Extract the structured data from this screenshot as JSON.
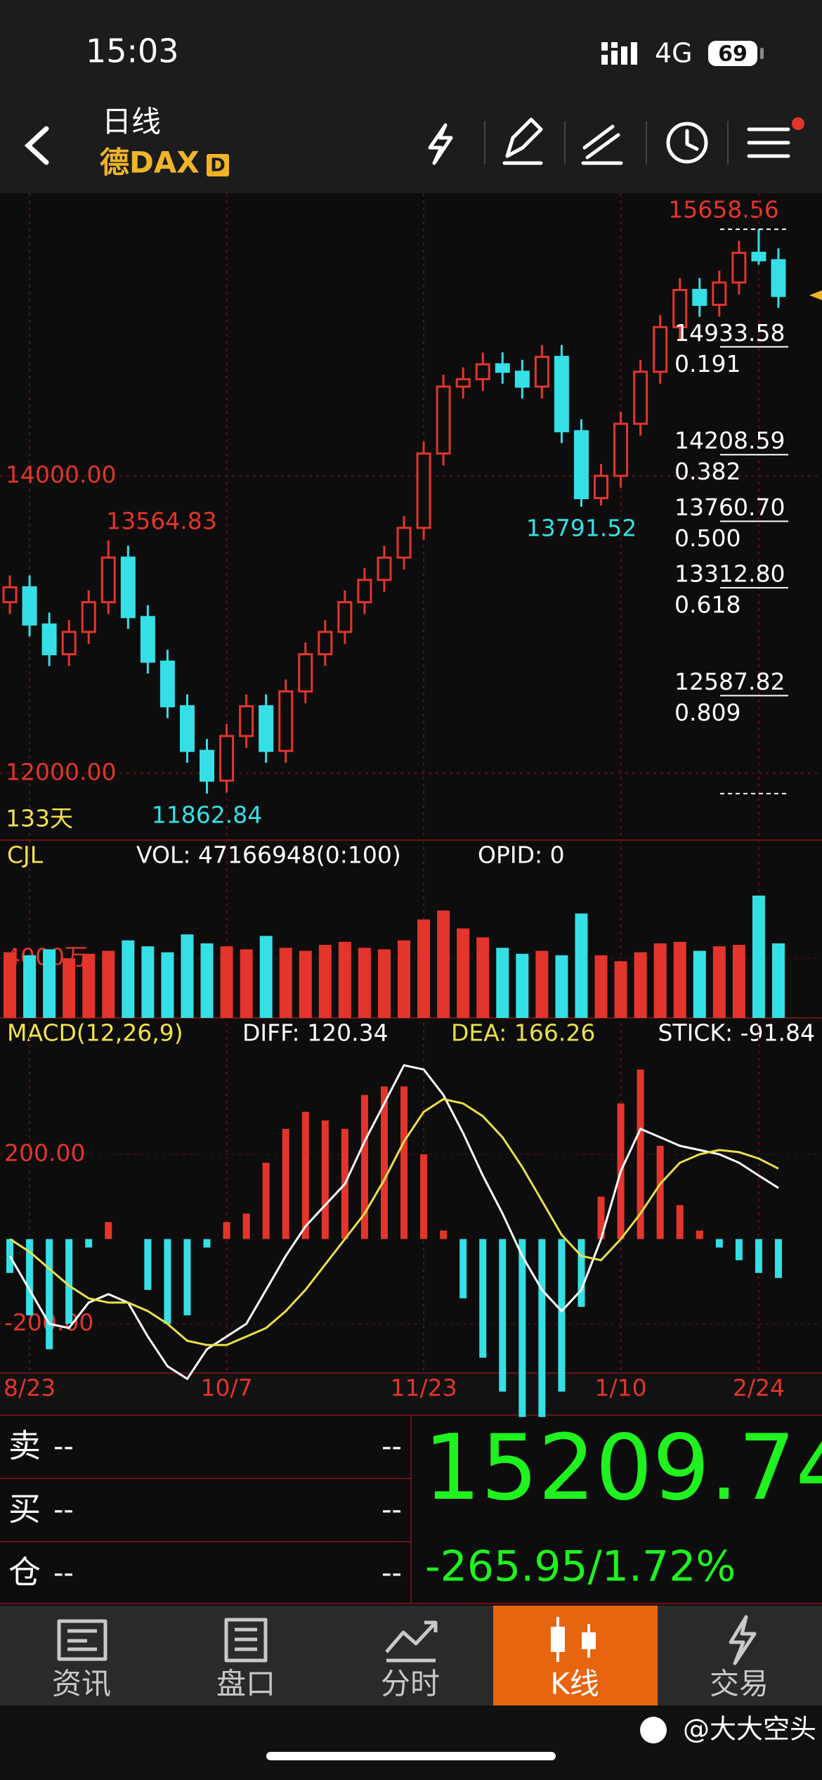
{
  "status_bar": {
    "time": "15:03",
    "network": "4G",
    "battery": "69"
  },
  "header": {
    "period": "日线",
    "symbol": "德DAX",
    "badge": "D"
  },
  "chart_data": [
    {
      "type": "candlestick",
      "period_label": "133天",
      "categories": [
        null,
        "8/23",
        null,
        null,
        null,
        null,
        null,
        null,
        null,
        null,
        null,
        "10/7",
        null,
        null,
        null,
        null,
        null,
        null,
        null,
        null,
        null,
        "11/23",
        null,
        null,
        null,
        null,
        null,
        null,
        null,
        null,
        null,
        "1/10",
        null,
        null,
        null,
        null,
        null,
        null,
        "2/24",
        null
      ],
      "open": [
        13150,
        13250,
        13000,
        12800,
        12950,
        13150,
        13450,
        13050,
        12750,
        12450,
        12150,
        11950,
        12250,
        12450,
        12150,
        12550,
        12800,
        12950,
        13150,
        13300,
        13450,
        13650,
        14150,
        14600,
        14650,
        14750,
        14700,
        14600,
        14800,
        14300,
        13850,
        14000,
        14350,
        14700,
        15000,
        15250,
        15150,
        15300,
        15500,
        15450
      ],
      "high": [
        13330,
        13330,
        13080,
        13030,
        13230,
        13564.83,
        13530,
        13130,
        12830,
        12530,
        12230,
        12330,
        12530,
        12530,
        12630,
        12880,
        13030,
        13230,
        13380,
        13530,
        13730,
        14230,
        14680,
        14730,
        14830,
        14830,
        14780,
        14880,
        14880,
        14380,
        14080,
        14430,
        14780,
        15080,
        15330,
        15330,
        15380,
        15580,
        15658.56,
        15530
      ],
      "low": [
        13070,
        12920,
        12720,
        12720,
        12870,
        13070,
        12970,
        12670,
        12370,
        12070,
        11862.84,
        11870,
        12170,
        12070,
        12070,
        12470,
        12720,
        12870,
        13070,
        13220,
        13370,
        13570,
        14070,
        14520,
        14570,
        14620,
        14520,
        14520,
        14220,
        13791.52,
        13800,
        13920,
        14270,
        14620,
        14920,
        15070,
        15070,
        15220,
        15420,
        15130
      ],
      "close": [
        13250,
        13000,
        12800,
        12950,
        13150,
        13450,
        13050,
        12750,
        12450,
        12150,
        11950,
        12250,
        12450,
        12150,
        12550,
        12800,
        12950,
        13150,
        13300,
        13450,
        13650,
        14150,
        14600,
        14650,
        14750,
        14700,
        14600,
        14800,
        14300,
        13850,
        14000,
        14350,
        14700,
        15000,
        15250,
        15150,
        15300,
        15500,
        15450,
        15210
      ],
      "up_color": "#e3352b",
      "down_color": "#35dfe6",
      "ylim": [
        11550,
        15900
      ],
      "yticks": [
        {
          "value": 14000,
          "label": "14000.00"
        },
        {
          "value": 12000,
          "label": "12000.00"
        }
      ],
      "fib_levels": [
        {
          "price": 14933.58,
          "ratio": 0.191
        },
        {
          "price": 14208.59,
          "ratio": 0.382
        },
        {
          "price": {
            "value": 13760.7,
            "label": "13760.70"
          },
          "ratio": {
            "value": 0.5,
            "label": "0.500"
          }
        },
        {
          "price": {
            "value": 13312.8,
            "label": "13312.80"
          },
          "ratio": 0.618
        },
        {
          "price": 12587.82,
          "ratio": 0.809
        }
      ]
    },
    {
      "type": "bar",
      "title": "CJL",
      "subtitle": "VOL: 47166948(0:100)",
      "annotation": "OPID: 0",
      "values": [
        4400,
        4200,
        4600,
        4000,
        4300,
        4500,
        5200,
        4800,
        4400,
        5600,
        5000,
        4800,
        4600,
        5500,
        4700,
        4500,
        4900,
        5100,
        4700,
        4600,
        5200,
        6600,
        7200,
        6000,
        5400,
        4700,
        4300,
        4500,
        4200,
        7000,
        4200,
        3800,
        4400,
        5000,
        5100,
        4500,
        4800,
        4900,
        8200,
        5000
      ],
      "ylim": [
        0,
        9800
      ],
      "yticks": [
        {
          "value": 4000,
          "label": "4000万"
        }
      ]
    },
    {
      "type": "macd",
      "title": "MACD(12,26,9)",
      "series": [
        {
          "name": "DIFF: 120.34",
          "color": "#ffffff",
          "values": [
            -40,
            -120,
            -200,
            -210,
            -150,
            -130,
            -150,
            -230,
            -300,
            -330,
            -260,
            -230,
            -200,
            -120,
            -40,
            30,
            80,
            130,
            230,
            320,
            410,
            400,
            340,
            250,
            150,
            60,
            -40,
            -120,
            -170,
            -120,
            0,
            160,
            260,
            240,
            220,
            210,
            200,
            180,
            150,
            120.34
          ]
        },
        {
          "name": "DEA: 166.26",
          "color": "#e8e04a",
          "values": [
            0,
            -30,
            -70,
            -110,
            -140,
            -150,
            -150,
            -170,
            -200,
            -240,
            -250,
            -250,
            -230,
            -210,
            -170,
            -120,
            -60,
            0,
            60,
            140,
            230,
            300,
            330,
            320,
            290,
            240,
            170,
            90,
            10,
            -40,
            -50,
            0,
            60,
            130,
            180,
            200,
            210,
            205,
            190,
            166.26
          ]
        }
      ],
      "stick": {
        "name": "STICK: -91.84",
        "color": "#ffffff",
        "values": [
          -80,
          -180,
          -260,
          -200,
          -20,
          40,
          0,
          -120,
          -200,
          -180,
          -20,
          40,
          60,
          180,
          260,
          300,
          280,
          260,
          340,
          360,
          360,
          200,
          20,
          -140,
          -280,
          -360,
          -420,
          -420,
          -360,
          -160,
          100,
          320,
          400,
          220,
          80,
          20,
          -20,
          -50,
          -80,
          -91.84
        ]
      },
      "ylim": [
        -316,
        452
      ],
      "yticks": [
        {
          "value": 200,
          "label": "200.00"
        },
        {
          "value": -200,
          "label": "-200.00"
        }
      ]
    }
  ],
  "quote": {
    "rows": [
      {
        "label": "卖",
        "left": "--",
        "right": "--"
      },
      {
        "label": "买",
        "left": "--",
        "right": "--"
      },
      {
        "label": "仓",
        "left": "--",
        "right": "--"
      }
    ],
    "price": 15209.74,
    "change": "-265.95/1.72%"
  },
  "tabs": [
    "资讯",
    "盘口",
    "分时",
    "K线",
    "交易"
  ],
  "watermark": "@大大空头"
}
